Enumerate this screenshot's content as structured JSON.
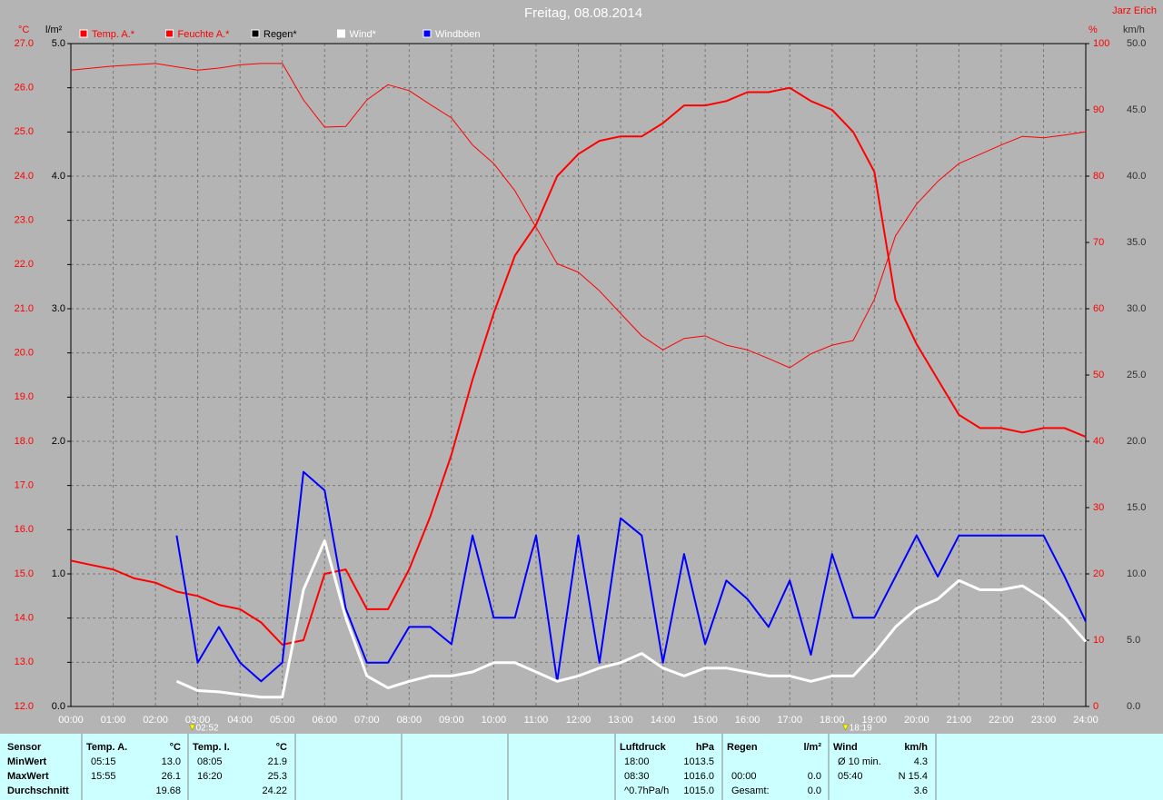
{
  "chart_data": {
    "type": "line",
    "title": "Freitag, 08.08.2014",
    "corner": "Jarz Erich",
    "grid": true,
    "xlim": [
      0,
      24
    ],
    "xticks": [
      {
        "value": 0,
        "label": "00:00"
      },
      {
        "value": 1,
        "label": "01:00"
      },
      {
        "value": 2,
        "label": "02:00"
      },
      {
        "value": 3,
        "label": "03:00"
      },
      {
        "value": 4,
        "label": "04:00"
      },
      {
        "value": 5,
        "label": "05:00"
      },
      {
        "value": 6,
        "label": "06:00"
      },
      {
        "value": 7,
        "label": "07:00"
      },
      {
        "value": 8,
        "label": "08:00"
      },
      {
        "value": 9,
        "label": "09:00"
      },
      {
        "value": 10,
        "label": "10:00"
      },
      {
        "value": 11,
        "label": "11:00"
      },
      {
        "value": 12,
        "label": "12:00"
      },
      {
        "value": 13,
        "label": "13:00"
      },
      {
        "value": 14,
        "label": "14:00"
      },
      {
        "value": 15,
        "label": "15:00"
      },
      {
        "value": 16,
        "label": "16:00"
      },
      {
        "value": 17,
        "label": "17:00"
      },
      {
        "value": 18,
        "label": "18:00"
      },
      {
        "value": 19,
        "label": "19:00"
      },
      {
        "value": 20,
        "label": "20:00"
      },
      {
        "value": 21,
        "label": "21:00"
      },
      {
        "value": 22,
        "label": "22:00"
      },
      {
        "value": 23,
        "label": "23:00"
      },
      {
        "value": 24,
        "label": "24:00"
      }
    ],
    "axes": [
      {
        "unit": "°C",
        "color": "#ff0000",
        "lim": [
          12,
          27
        ],
        "ticks": [
          {
            "value": 12,
            "label": "12.0"
          },
          {
            "value": 13,
            "label": "13.0"
          },
          {
            "value": 14,
            "label": "14.0"
          },
          {
            "value": 15,
            "label": "15.0"
          },
          {
            "value": 16,
            "label": "16.0"
          },
          {
            "value": 17,
            "label": "17.0"
          },
          {
            "value": 18,
            "label": "18.0"
          },
          {
            "value": 19,
            "label": "19.0"
          },
          {
            "value": 20,
            "label": "20.0"
          },
          {
            "value": 21,
            "label": "21.0"
          },
          {
            "value": 22,
            "label": "22.0"
          },
          {
            "value": 23,
            "label": "23.0"
          },
          {
            "value": 24,
            "label": "24.0"
          },
          {
            "value": 25,
            "label": "25.0"
          },
          {
            "value": 26,
            "label": "26.0"
          },
          {
            "value": 27,
            "label": "27.0"
          }
        ]
      },
      {
        "unit": "l/m²",
        "color": "#000000",
        "lim": [
          0,
          5
        ],
        "ticks": [
          {
            "value": 0,
            "label": "0.0"
          },
          {
            "value": 1,
            "label": "1.0"
          },
          {
            "value": 2,
            "label": "2.0"
          },
          {
            "value": 3,
            "label": "3.0"
          },
          {
            "value": 4,
            "label": "4.0"
          },
          {
            "value": 5,
            "label": "5.0"
          }
        ]
      },
      {
        "unit": "%",
        "color": "#ff0000",
        "lim": [
          0,
          100
        ],
        "ticks": [
          0,
          10,
          20,
          30,
          40,
          50,
          60,
          70,
          80,
          90,
          100
        ]
      },
      {
        "unit": "km/h",
        "color": "#303030",
        "lim": [
          0,
          50
        ],
        "ticks": [
          {
            "value": 0,
            "label": "0.0"
          },
          {
            "value": 5,
            "label": "5.0"
          },
          {
            "value": 10,
            "label": "10.0"
          },
          {
            "value": 15,
            "label": "15.0"
          },
          {
            "value": 20,
            "label": "20.0"
          },
          {
            "value": 25,
            "label": "25.0"
          },
          {
            "value": 30,
            "label": "30.0"
          },
          {
            "value": 35,
            "label": "35.0"
          },
          {
            "value": 40,
            "label": "40.0"
          },
          {
            "value": 45,
            "label": "45.0"
          },
          {
            "value": 50,
            "label": "50.0"
          }
        ]
      }
    ],
    "x": [
      0,
      0.5,
      1,
      1.5,
      2,
      2.5,
      3,
      3.5,
      4,
      4.5,
      5,
      5.5,
      6,
      6.5,
      7,
      7.5,
      8,
      8.5,
      9,
      9.5,
      10,
      10.5,
      11,
      11.5,
      12,
      12.5,
      13,
      13.5,
      14,
      14.5,
      15,
      15.5,
      16,
      16.5,
      17,
      17.5,
      18,
      18.5,
      19,
      19.5,
      20,
      20.5,
      21,
      21.5,
      22,
      22.5,
      23,
      23.5,
      24
    ],
    "series": [
      {
        "name": "Temp. A.*",
        "color": "#ff0000",
        "axis": 0,
        "width": 2,
        "values": [
          15.3,
          15.2,
          15.1,
          14.9,
          14.8,
          14.6,
          14.5,
          14.3,
          14.2,
          13.9,
          13.4,
          13.5,
          15.0,
          15.1,
          14.2,
          14.2,
          15.1,
          16.3,
          17.7,
          19.4,
          20.9,
          22.2,
          22.9,
          24.0,
          24.5,
          24.8,
          24.9,
          24.9,
          25.2,
          25.6,
          25.6,
          25.7,
          25.9,
          25.9,
          26.0,
          25.7,
          25.5,
          25.0,
          24.1,
          21.2,
          20.2,
          19.4,
          18.6,
          18.3,
          18.3,
          18.2,
          18.3,
          18.3,
          18.1
        ]
      },
      {
        "name": "Feuchte A.*",
        "color": "#ff0000",
        "axis": 2,
        "width": 1,
        "values": [
          96,
          96.3,
          96.6,
          96.8,
          97,
          96.5,
          96,
          96.3,
          96.8,
          97,
          97,
          91.5,
          87.4,
          87.5,
          91.5,
          93.8,
          92.9,
          90.8,
          88.8,
          84.7,
          81.9,
          77.8,
          72.3,
          66.8,
          65.5,
          62.7,
          59.3,
          55.9,
          53.8,
          55.5,
          55.9,
          54.5,
          53.8,
          52.5,
          51.1,
          53.2,
          54.5,
          55.2,
          61.4,
          71,
          75.8,
          79.2,
          81.9,
          83.3,
          84.7,
          86,
          85.8,
          86.2,
          86.7
        ]
      },
      {
        "name": "Regen*",
        "color": "#000000",
        "axis": 1,
        "width": 1,
        "values": [
          0,
          0,
          0,
          0,
          0,
          0,
          0,
          0,
          0,
          0,
          0,
          0,
          0,
          0,
          0,
          0,
          0,
          0,
          0,
          0,
          0,
          0,
          0,
          0,
          0,
          0,
          0,
          0,
          0,
          0,
          0,
          0,
          0,
          0,
          0,
          0,
          0,
          0,
          0,
          0,
          0,
          0,
          0,
          0,
          0,
          0,
          0,
          0,
          0
        ]
      },
      {
        "name": "Wind*",
        "color": "#ffffff",
        "axis": 3,
        "width": 3,
        "values": [
          null,
          null,
          null,
          null,
          null,
          1.9,
          1.2,
          1.1,
          0.9,
          0.7,
          0.7,
          8.8,
          12.5,
          6.7,
          2.3,
          1.4,
          1.9,
          2.3,
          2.3,
          2.6,
          3.3,
          3.3,
          2.6,
          1.9,
          2.3,
          2.9,
          3.3,
          4.0,
          2.9,
          2.3,
          2.9,
          2.9,
          2.6,
          2.3,
          2.3,
          1.9,
          2.3,
          2.3,
          4.0,
          6.0,
          7.4,
          8.1,
          9.5,
          8.8,
          8.8,
          9.1,
          8.1,
          6.7,
          4.9
        ]
      },
      {
        "name": "Windböen",
        "color": "#0000ff",
        "axis": 3,
        "width": 2,
        "values": [
          null,
          null,
          null,
          null,
          null,
          12.9,
          3.3,
          6.0,
          3.3,
          1.9,
          3.3,
          17.7,
          16.3,
          7.4,
          3.3,
          3.3,
          6.0,
          6.0,
          4.7,
          12.9,
          6.7,
          6.7,
          12.9,
          1.9,
          12.9,
          3.3,
          14.2,
          12.9,
          3.3,
          11.5,
          4.7,
          9.5,
          8.1,
          6.0,
          9.5,
          3.9,
          11.5,
          6.7,
          6.7,
          9.8,
          12.9,
          9.8,
          12.9,
          12.9,
          12.9,
          12.9,
          12.9,
          9.8,
          6.4
        ]
      }
    ],
    "annotations": [
      {
        "x": 2.87,
        "label": "02:52"
      },
      {
        "x": 18.32,
        "label": "18:19"
      }
    ]
  },
  "stats": {
    "row_labels": [
      "Sensor",
      "MinWert",
      "MaxWert",
      "Durchschnitt"
    ],
    "columns": [
      {
        "title": "Temp. A.",
        "unit": "°C",
        "rows": [
          [
            "05:15",
            "13.0"
          ],
          [
            "15:55",
            "26.1"
          ],
          [
            null,
            "19.68"
          ]
        ]
      },
      {
        "title": "Temp. I.",
        "unit": "°C",
        "rows": [
          [
            "08:05",
            "21.9"
          ],
          [
            "16:20",
            "25.3"
          ],
          [
            null,
            "24.22"
          ]
        ]
      },
      {
        "title": "Luftdruck",
        "unit": "hPa",
        "rows": [
          [
            "18:00",
            "1013.5"
          ],
          [
            "08:30",
            "1016.0"
          ],
          [
            "^0.7hPa/h",
            "1015.0"
          ]
        ]
      },
      {
        "title": "Regen",
        "unit": "l/m²",
        "rows": [
          [
            null,
            null
          ],
          [
            "00:00",
            "0.0"
          ],
          [
            "Gesamt:",
            "0.0"
          ]
        ]
      },
      {
        "title": "Wind",
        "unit": "km/h",
        "rows": [
          [
            "Ø 10 min.",
            "4.3"
          ],
          [
            "05:40",
            "N 15.4"
          ],
          [
            null,
            "3.6"
          ]
        ]
      }
    ]
  }
}
